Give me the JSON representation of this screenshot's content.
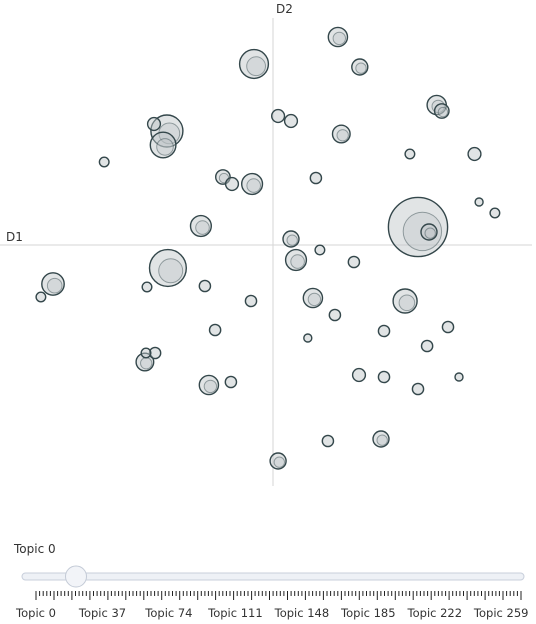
{
  "chart_data": {
    "type": "scatter",
    "title": "",
    "xlabel": "D1",
    "ylabel": "D2",
    "xlim": [
      -10,
      10
    ],
    "ylim": [
      -10,
      10
    ],
    "grid": false,
    "points": [
      {
        "x": 2.42,
        "y": 8.32,
        "r": 1.2
      },
      {
        "x": 3.24,
        "y": 7.12,
        "r": 1.0
      },
      {
        "x": -0.71,
        "y": 7.24,
        "r": 1.8
      },
      {
        "x": 6.11,
        "y": 5.6,
        "r": 1.2
      },
      {
        "x": 6.3,
        "y": 5.36,
        "r": 0.9
      },
      {
        "x": 0.19,
        "y": 5.16,
        "r": 0.8
      },
      {
        "x": 0.67,
        "y": 4.96,
        "r": 0.8
      },
      {
        "x": 2.55,
        "y": 4.44,
        "r": 1.1
      },
      {
        "x": -4.44,
        "y": 4.84,
        "r": 0.8
      },
      {
        "x": -3.96,
        "y": 4.56,
        "r": 2.0
      },
      {
        "x": -4.1,
        "y": 4.0,
        "r": 1.6
      },
      {
        "x": 5.11,
        "y": 3.64,
        "r": 0.6
      },
      {
        "x": 7.52,
        "y": 3.64,
        "r": 0.8
      },
      {
        "x": -6.3,
        "y": 3.32,
        "r": 0.6
      },
      {
        "x": 1.6,
        "y": 2.68,
        "r": 0.7
      },
      {
        "x": -1.87,
        "y": 2.72,
        "r": 0.9
      },
      {
        "x": -1.53,
        "y": 2.44,
        "r": 0.8
      },
      {
        "x": -0.78,
        "y": 2.44,
        "r": 1.3
      },
      {
        "x": 7.69,
        "y": 1.72,
        "r": 0.5
      },
      {
        "x": 8.28,
        "y": 1.28,
        "r": 0.6
      },
      {
        "x": 5.41,
        "y": 0.72,
        "r": 3.7
      },
      {
        "x": 5.82,
        "y": 0.52,
        "r": 1.0
      },
      {
        "x": -2.69,
        "y": 0.76,
        "r": 1.3
      },
      {
        "x": 0.67,
        "y": 0.24,
        "r": 1.0
      },
      {
        "x": 1.75,
        "y": -0.2,
        "r": 0.6
      },
      {
        "x": 0.86,
        "y": -0.6,
        "r": 1.3
      },
      {
        "x": 3.02,
        "y": -0.68,
        "r": 0.7
      },
      {
        "x": -3.92,
        "y": -0.92,
        "r": 2.3
      },
      {
        "x": -8.21,
        "y": -1.56,
        "r": 1.4
      },
      {
        "x": -8.66,
        "y": -2.08,
        "r": 0.6
      },
      {
        "x": -4.7,
        "y": -1.68,
        "r": 0.6
      },
      {
        "x": -2.54,
        "y": -1.64,
        "r": 0.7
      },
      {
        "x": -0.82,
        "y": -2.24,
        "r": 0.7
      },
      {
        "x": 1.49,
        "y": -2.12,
        "r": 1.2
      },
      {
        "x": 4.93,
        "y": -2.24,
        "r": 1.5
      },
      {
        "x": 2.31,
        "y": -2.8,
        "r": 0.7
      },
      {
        "x": 6.53,
        "y": -3.28,
        "r": 0.7
      },
      {
        "x": -2.16,
        "y": -3.4,
        "r": 0.7
      },
      {
        "x": 4.14,
        "y": -3.44,
        "r": 0.7
      },
      {
        "x": 1.3,
        "y": -3.72,
        "r": 0.5
      },
      {
        "x": 5.75,
        "y": -4.04,
        "r": 0.7
      },
      {
        "x": -4.74,
        "y": -4.32,
        "r": 0.6
      },
      {
        "x": -4.4,
        "y": -4.32,
        "r": 0.7
      },
      {
        "x": -4.78,
        "y": -4.68,
        "r": 1.1
      },
      {
        "x": 3.21,
        "y": -5.2,
        "r": 0.8
      },
      {
        "x": 4.14,
        "y": -5.28,
        "r": 0.7
      },
      {
        "x": 6.94,
        "y": -5.28,
        "r": 0.5
      },
      {
        "x": -2.39,
        "y": -5.6,
        "r": 1.2
      },
      {
        "x": -1.57,
        "y": -5.48,
        "r": 0.7
      },
      {
        "x": 5.41,
        "y": -5.76,
        "r": 0.7
      },
      {
        "x": 2.05,
        "y": -7.84,
        "r": 0.7
      },
      {
        "x": 4.03,
        "y": -7.76,
        "r": 1.0
      },
      {
        "x": 0.19,
        "y": -8.64,
        "r": 1.0
      }
    ]
  },
  "slider": {
    "title": "Topic 0",
    "min": 0,
    "max": 270,
    "value": 0,
    "tick_labels": [
      {
        "topic": 0,
        "label": "Topic 0"
      },
      {
        "topic": 37,
        "label": "Topic 37"
      },
      {
        "topic": 74,
        "label": "Topic 74"
      },
      {
        "topic": 111,
        "label": "Topic 111"
      },
      {
        "topic": 148,
        "label": "Topic 148"
      },
      {
        "topic": 185,
        "label": "Topic 185"
      },
      {
        "topic": 222,
        "label": "Topic 222"
      },
      {
        "topic": 259,
        "label": "Topic 259"
      }
    ]
  },
  "colors": {
    "circle_fill": "#bdc3c5",
    "circle_stroke": "#34474b",
    "axis_line": "#d6d6d6",
    "slider_track": "#d0d7e3",
    "slider_handle": "#f2f4f8"
  }
}
